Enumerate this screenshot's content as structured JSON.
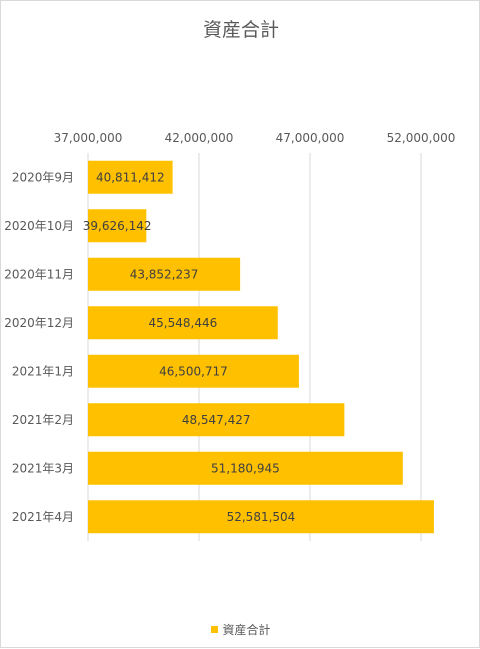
{
  "chart_data": {
    "type": "bar",
    "orientation": "horizontal",
    "title": "資産合計",
    "categories": [
      "2020年9月",
      "2020年10月",
      "2020年11月",
      "2020年12月",
      "2021年1月",
      "2021年2月",
      "2021年3月",
      "2021年4月"
    ],
    "series": [
      {
        "name": "資産合計",
        "values": [
          40811412,
          39626142,
          43852237,
          45548446,
          46500717,
          48547427,
          51180945,
          52581504
        ],
        "value_labels": [
          "40,811,412",
          "39,626,142",
          "43,852,237",
          "45,548,446",
          "46,500,717",
          "48,547,427",
          "51,180,945",
          "52,581,504"
        ],
        "color": "#FFC000"
      }
    ],
    "x_axis": {
      "position": "top",
      "min": 37000000,
      "max": 52000000,
      "ticks": [
        37000000,
        42000000,
        47000000,
        52000000
      ],
      "tick_labels": [
        "37,000,000",
        "42,000,000",
        "47,000,000",
        "52,000,000"
      ]
    },
    "grid": true,
    "legend": {
      "position": "bottom",
      "label": "資産合計"
    }
  }
}
